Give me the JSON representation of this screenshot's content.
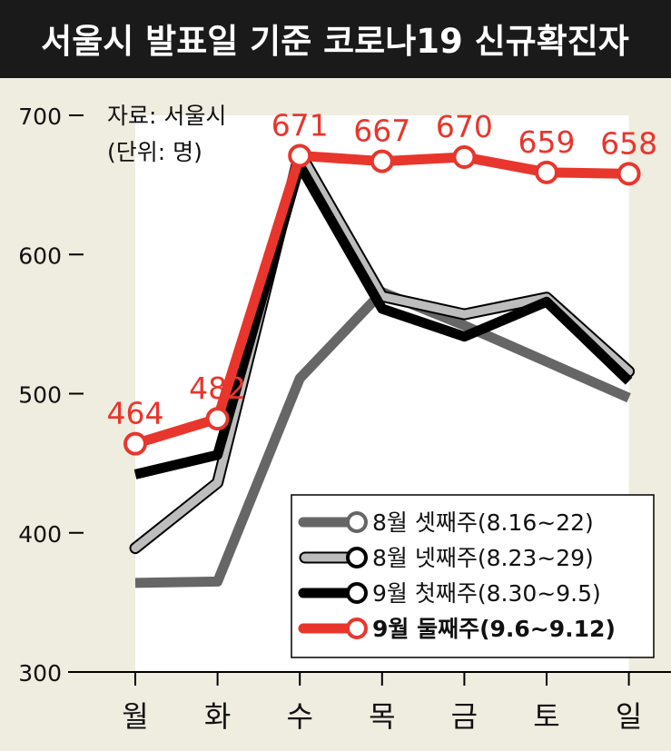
{
  "chart_data": {
    "type": "line",
    "title": "서울시 발표일 기준 코로나19 신규확진자",
    "source": "자료: 서울시",
    "unit": "(단위: 명)",
    "categories": [
      "월",
      "화",
      "수",
      "목",
      "금",
      "토",
      "일"
    ],
    "yticks": [
      "700",
      "600",
      "500",
      "400",
      "300"
    ],
    "ylim": [
      300,
      700
    ],
    "grid": false,
    "legend_position": "bottom-right",
    "series": [
      {
        "name": "8월 셋째주(8.16~22)",
        "values": [
          364,
          365,
          511,
          573,
          549,
          523,
          497
        ],
        "color": "#666666",
        "style": "thick"
      },
      {
        "name": "8월 넷째주(8.23~29)",
        "values": [
          389,
          436,
          673,
          570,
          557,
          569,
          516
        ],
        "color": "#bdbdbd",
        "style": "outlined"
      },
      {
        "name": "9월 첫째주(8.30~9.5)",
        "values": [
          442,
          456,
          664,
          561,
          541,
          566,
          509
        ],
        "color": "#000000",
        "style": "thick"
      },
      {
        "name": "9월 둘째주(9.6~9.12)",
        "values": [
          464,
          482,
          671,
          667,
          670,
          659,
          658
        ],
        "color": "#e8362d",
        "style": "thick-markers",
        "data_labels": [
          "464",
          "482",
          "671",
          "667",
          "670",
          "659",
          "658"
        ]
      }
    ],
    "colors": {
      "background": "#efece0",
      "plot_area": "#ffffff",
      "title_bar": "#1a1a1a",
      "highlight": "#e8362d"
    }
  }
}
